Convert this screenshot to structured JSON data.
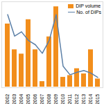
{
  "chart_data": {
    "type": "bar",
    "categories": [
      "2002",
      "2003",
      "2004",
      "2005",
      "2006",
      "2007",
      "2008",
      "2009",
      "2010",
      "2011",
      "2012",
      "2013",
      "2014",
      "2015"
    ],
    "series": [
      {
        "name": "DIP volume",
        "type": "bar",
        "color": "#f28e1c",
        "values": [
          75,
          45,
          40,
          80,
          45,
          8,
          60,
          95,
          13,
          15,
          23,
          17,
          45,
          11
        ]
      },
      {
        "name": "No. of DIPs",
        "type": "line",
        "axis": "y2",
        "color": "#5b7fa6",
        "values": [
          85,
          60,
          65,
          55,
          50,
          40,
          55,
          85,
          25,
          15,
          18,
          20,
          17,
          12
        ]
      }
    ],
    "ylim": [
      0,
      100
    ],
    "y2lim": [
      0,
      100
    ],
    "tick_labels": "x",
    "grid": false,
    "legend": "top-right"
  }
}
